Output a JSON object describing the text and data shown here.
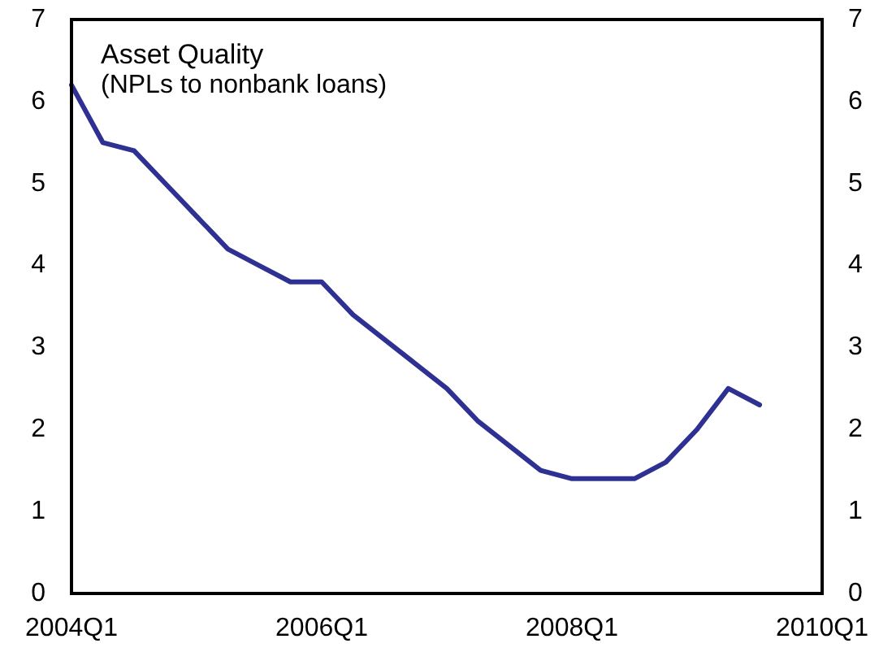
{
  "chart_data": {
    "type": "line",
    "title": "Asset Quality",
    "subtitle": "(NPLs to nonbank loans)",
    "categories": [
      "2004Q1",
      null,
      null,
      null,
      null,
      null,
      null,
      null,
      "2006Q1",
      null,
      null,
      null,
      null,
      null,
      null,
      null,
      "2008Q1",
      null,
      null,
      null,
      null,
      null,
      null,
      null,
      "2010Q1"
    ],
    "values": [
      6.2,
      5.5,
      5.4,
      5.0,
      4.6,
      4.2,
      4.0,
      3.8,
      3.8,
      3.4,
      3.1,
      2.8,
      2.5,
      2.1,
      1.8,
      1.5,
      1.4,
      1.4,
      1.4,
      1.6,
      2.0,
      2.5,
      2.3,
      null,
      null
    ],
    "color": "#2e3192",
    "ylim": [
      0,
      7
    ],
    "yticks": [
      0,
      1,
      2,
      3,
      4,
      5,
      6,
      7
    ],
    "y2lim": [
      0,
      7
    ],
    "y2ticks": [
      0,
      1,
      2,
      3,
      4,
      5,
      6,
      7
    ],
    "marker": "none",
    "line_style": "solid"
  }
}
